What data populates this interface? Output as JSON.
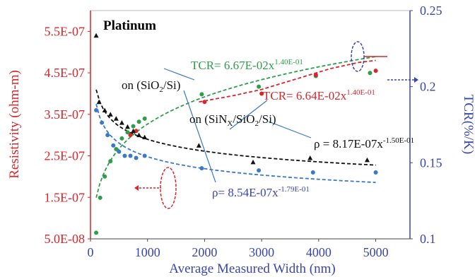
{
  "chart_data": {
    "type": "scatter",
    "title": "Platinum",
    "xlabel": "Average Measured Width (nm)",
    "ylabel_left": "Resistivity (ohm-m)",
    "ylabel_right": "TCR(%/K)",
    "xlim": [
      0,
      5600
    ],
    "ylim_left": [
      5e-08,
      6e-07
    ],
    "ylim_right": [
      0.1,
      0.25
    ],
    "x_ticks": [
      "0",
      "1000",
      "2000",
      "3000",
      "4000",
      "5000"
    ],
    "x_tick_values": [
      0,
      1000,
      2000,
      3000,
      4000,
      5000
    ],
    "y_left_ticks": [
      "5.5E-07",
      "4.5E-07",
      "3.5E-07",
      "2.5E-07",
      "1.5E-07",
      "5.0E-08"
    ],
    "y_left_tick_values": [
      5.5e-07,
      4.5e-07,
      3.5e-07,
      2.5e-07,
      1.5e-07,
      5e-08
    ],
    "y_right_ticks": [
      "0.25",
      "0.2",
      "0.15",
      "0.1"
    ],
    "y_right_tick_values": [
      0.25,
      0.2,
      0.15,
      0.1
    ],
    "colors": {
      "left_axis": "#d9262a",
      "right_axis": "#3a46b0",
      "green": "#2e9e4a",
      "red": "#d9262a",
      "black": "#111111",
      "blue": "#3b78c7"
    },
    "series": [
      {
        "axis": "right",
        "marker": "circle",
        "color": "#2e9e4a",
        "points": [
          [
            100,
            0.104
          ],
          [
            170,
            0.127
          ],
          [
            250,
            0.141
          ],
          [
            350,
            0.151
          ],
          [
            450,
            0.159
          ],
          [
            550,
            0.166
          ],
          [
            650,
            0.17
          ],
          [
            750,
            0.174
          ],
          [
            850,
            0.177
          ],
          [
            950,
            0.179
          ],
          [
            1950,
            0.195
          ],
          [
            2950,
            0.2
          ],
          [
            3950,
            0.207
          ],
          [
            4900,
            0.209
          ]
        ]
      },
      {
        "axis": "left",
        "marker": "circle",
        "color": "#d9262a",
        "points": [
          [
            700,
            3e-07
          ],
          [
            800,
            3.1e-07
          ],
          [
            2000,
            3.8e-07
          ],
          [
            3000,
            4e-07
          ],
          [
            3950,
            4.45e-07
          ],
          [
            5000,
            4.55e-07
          ]
        ]
      },
      {
        "axis": "left",
        "marker": "triangle",
        "color": "#111111",
        "points": [
          [
            100,
            5.4e-07
          ],
          [
            150,
            3.8e-07
          ],
          [
            250,
            3.6e-07
          ],
          [
            350,
            3.5e-07
          ],
          [
            450,
            3.4e-07
          ],
          [
            550,
            3.3e-07
          ],
          [
            650,
            3.2e-07
          ],
          [
            750,
            3.1e-07
          ],
          [
            850,
            3e-07
          ],
          [
            950,
            2.95e-07
          ],
          [
            1900,
            2.75e-07
          ],
          [
            2850,
            2.35e-07
          ],
          [
            3850,
            2.45e-07
          ],
          [
            4850,
            2.4e-07
          ]
        ]
      },
      {
        "axis": "left",
        "marker": "circle",
        "color": "#3b78c7",
        "points": [
          [
            100,
            3.6e-07
          ],
          [
            200,
            3.3e-07
          ],
          [
            300,
            3e-07
          ],
          [
            400,
            2.75e-07
          ],
          [
            500,
            2.6e-07
          ],
          [
            600,
            2.5e-07
          ],
          [
            700,
            2.5e-07
          ],
          [
            800,
            2.45e-07
          ],
          [
            950,
            2.5e-07
          ],
          [
            1950,
            2.2e-07
          ],
          [
            2950,
            2.15e-07
          ],
          [
            3900,
            2.1e-07
          ],
          [
            5000,
            2.1e-07
          ]
        ]
      }
    ],
    "fits": [
      {
        "axis": "right",
        "color": "#2e9e4a",
        "coef": 0.0667,
        "exp": 0.14,
        "style": "dashed",
        "x_from": 100,
        "x_to": 5000
      },
      {
        "axis": "left",
        "color": "#d9262a",
        "style": "dashed",
        "points": [
          [
            1900,
            3.8e-07
          ],
          [
            2500,
            3.95e-07
          ],
          [
            3000,
            4.1e-07
          ],
          [
            3600,
            4.35e-07
          ],
          [
            4200,
            4.6e-07
          ],
          [
            4700,
            4.75e-07
          ],
          [
            5000,
            4.8e-07
          ]
        ]
      },
      {
        "axis": "left",
        "color": "#111111",
        "coef": 8.17e-07,
        "exp": -0.15,
        "style": "dashed",
        "x_from": 100,
        "x_to": 5000
      },
      {
        "axis": "left",
        "color": "#3b78c7",
        "coef": 8.54e-07,
        "exp": -0.179,
        "style": "dashed",
        "x_from": 100,
        "x_to": 5000
      }
    ],
    "annotations": {
      "green_eq": "TCR= 6.67E-02x",
      "green_exp": "1.40E-01",
      "red_eq": "TCR= 6.64E-02x",
      "red_exp": "1.40E-01",
      "sio2_label_a": "on (SiO",
      "sio2_sub": "2",
      "sio2_label_b": "/Si)",
      "sinx_label_a": "on (SiN",
      "sinx_sub1": "X",
      "sinx_label_b": "/SiO",
      "sinx_sub2": "2",
      "sinx_label_c": "/Si)",
      "black_eq": "ρ = 8.17E-07x",
      "black_exp": "-1.50E-01",
      "blue_eq": "ρ= 8.54E-07x",
      "blue_exp": "-1.79E-01"
    }
  }
}
